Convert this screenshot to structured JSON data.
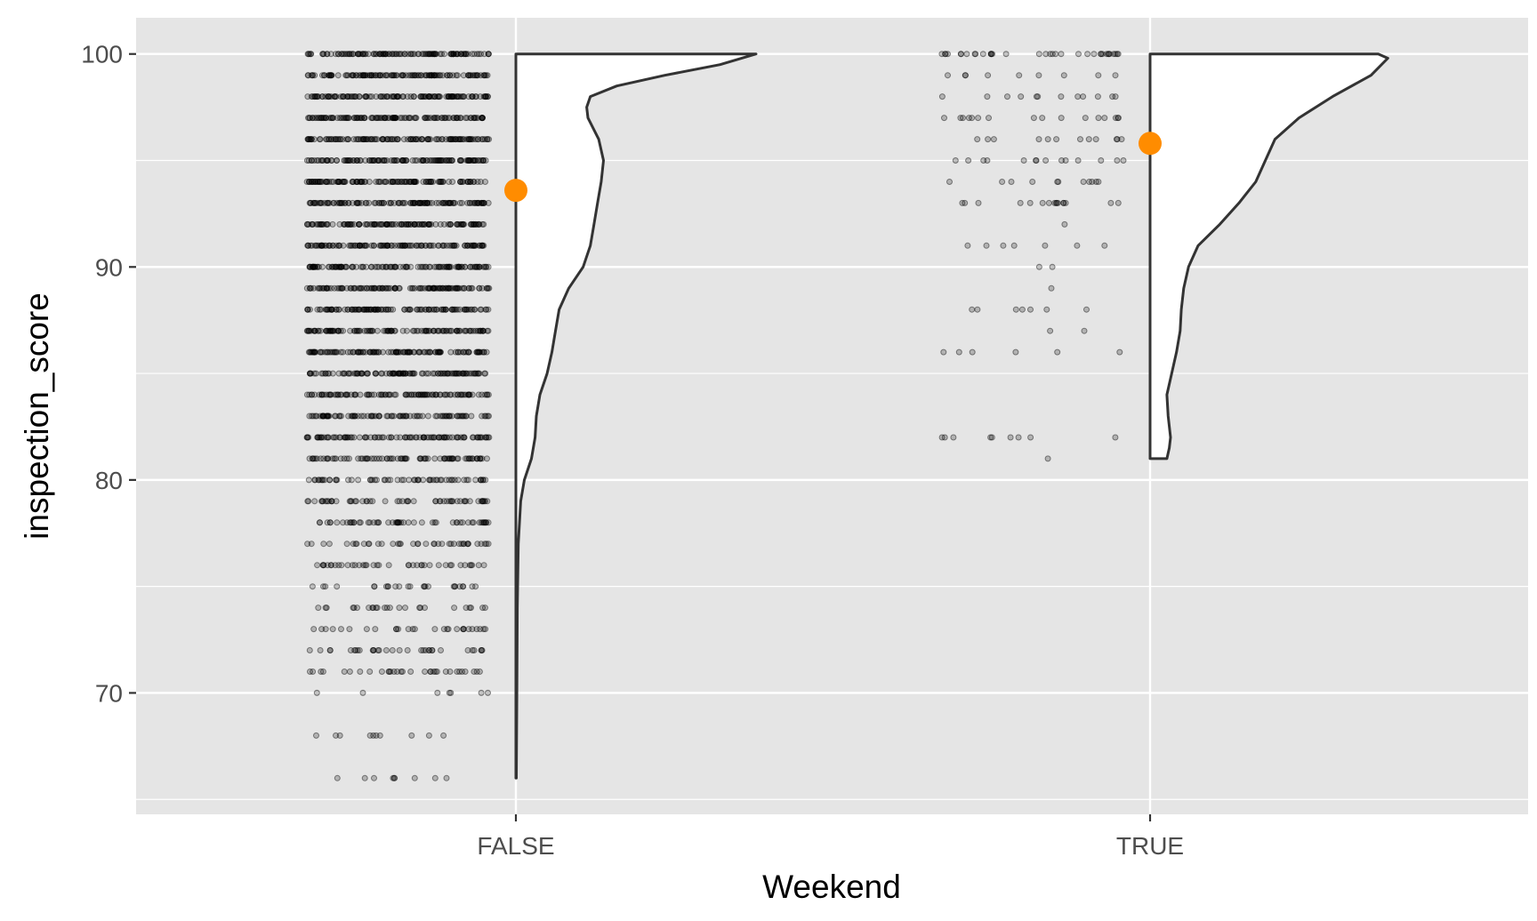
{
  "chart_data": {
    "type": "violin",
    "xlabel": "Weekend",
    "ylabel": "inspection_score",
    "categories": [
      "FALSE",
      "TRUE"
    ],
    "ylim": [
      64.3,
      101.7
    ],
    "y_ticks": [
      70,
      80,
      90,
      100
    ],
    "y_tick_labels": [
      "70",
      "80",
      "90",
      "100"
    ],
    "grid": true,
    "legend": "none",
    "panel_background": "#e5e5e5",
    "grid_color": "#ffffff",
    "point_color": "#000000",
    "mean_color": "#ff8c00",
    "means": [
      {
        "category": "FALSE",
        "y": 93.6
      },
      {
        "category": "TRUE",
        "y": 95.8
      }
    ],
    "density": [
      {
        "category": "FALSE",
        "y_range": [
          66,
          100
        ],
        "profile": [
          [
            66,
            0.002
          ],
          [
            70,
            0.004
          ],
          [
            74,
            0.006
          ],
          [
            77,
            0.01
          ],
          [
            79,
            0.02
          ],
          [
            80,
            0.035
          ],
          [
            81,
            0.065
          ],
          [
            82,
            0.08
          ],
          [
            83,
            0.085
          ],
          [
            84,
            0.1
          ],
          [
            85,
            0.13
          ],
          [
            86,
            0.15
          ],
          [
            87,
            0.165
          ],
          [
            88,
            0.18
          ],
          [
            89,
            0.22
          ],
          [
            90,
            0.28
          ],
          [
            91,
            0.31
          ],
          [
            92,
            0.325
          ],
          [
            93,
            0.34
          ],
          [
            94,
            0.355
          ],
          [
            95,
            0.365
          ],
          [
            96,
            0.345
          ],
          [
            97,
            0.3
          ],
          [
            97.5,
            0.295
          ],
          [
            98,
            0.31
          ],
          [
            98.5,
            0.42
          ],
          [
            99,
            0.62
          ],
          [
            99.5,
            0.85
          ],
          [
            100,
            1.0
          ]
        ]
      },
      {
        "category": "TRUE",
        "y_range": [
          81,
          100
        ],
        "profile": [
          [
            81,
            0.07
          ],
          [
            81.5,
            0.08
          ],
          [
            82,
            0.085
          ],
          [
            83,
            0.075
          ],
          [
            84,
            0.07
          ],
          [
            85,
            0.09
          ],
          [
            86,
            0.11
          ],
          [
            87,
            0.125
          ],
          [
            88,
            0.13
          ],
          [
            89,
            0.14
          ],
          [
            90,
            0.16
          ],
          [
            91,
            0.2
          ],
          [
            92,
            0.29
          ],
          [
            93,
            0.37
          ],
          [
            94,
            0.44
          ],
          [
            95,
            0.48
          ],
          [
            96,
            0.52
          ],
          [
            97,
            0.62
          ],
          [
            98,
            0.76
          ],
          [
            99,
            0.92
          ],
          [
            99.8,
            0.99
          ],
          [
            100,
            0.95
          ]
        ]
      }
    ],
    "jitter_points": [
      {
        "category": "FALSE",
        "scores": [
          {
            "y": 100,
            "n": 120
          },
          {
            "y": 99,
            "n": 120
          },
          {
            "y": 98,
            "n": 120
          },
          {
            "y": 97,
            "n": 120
          },
          {
            "y": 96,
            "n": 120
          },
          {
            "y": 95,
            "n": 120
          },
          {
            "y": 94,
            "n": 120
          },
          {
            "y": 93,
            "n": 120
          },
          {
            "y": 92,
            "n": 120
          },
          {
            "y": 91,
            "n": 120
          },
          {
            "y": 90,
            "n": 120
          },
          {
            "y": 89,
            "n": 120
          },
          {
            "y": 88,
            "n": 115
          },
          {
            "y": 87,
            "n": 115
          },
          {
            "y": 86,
            "n": 115
          },
          {
            "y": 85,
            "n": 110
          },
          {
            "y": 84,
            "n": 100
          },
          {
            "y": 83,
            "n": 90
          },
          {
            "y": 82,
            "n": 95
          },
          {
            "y": 81,
            "n": 80
          },
          {
            "y": 80,
            "n": 60
          },
          {
            "y": 79,
            "n": 55
          },
          {
            "y": 78,
            "n": 55
          },
          {
            "y": 77,
            "n": 40
          },
          {
            "y": 76,
            "n": 40
          },
          {
            "y": 75,
            "n": 25
          },
          {
            "y": 74,
            "n": 25
          },
          {
            "y": 73,
            "n": 28
          },
          {
            "y": 72,
            "n": 32
          },
          {
            "y": 71,
            "n": 32
          },
          {
            "y": 70,
            "n": 7
          },
          {
            "y": 68,
            "n": 10
          },
          {
            "y": 66,
            "n": 9
          }
        ]
      },
      {
        "category": "TRUE",
        "scores": [
          {
            "y": 100,
            "n": 35
          },
          {
            "y": 99,
            "n": 9
          },
          {
            "y": 98,
            "n": 12
          },
          {
            "y": 97,
            "n": 16
          },
          {
            "y": 96,
            "n": 12
          },
          {
            "y": 95,
            "n": 14
          },
          {
            "y": 94,
            "n": 11
          },
          {
            "y": 93,
            "n": 16
          },
          {
            "y": 92,
            "n": 1
          },
          {
            "y": 91,
            "n": 7
          },
          {
            "y": 90,
            "n": 2
          },
          {
            "y": 89,
            "n": 1
          },
          {
            "y": 88,
            "n": 7
          },
          {
            "y": 87,
            "n": 2
          },
          {
            "y": 86,
            "n": 6
          },
          {
            "y": 82,
            "n": 9
          },
          {
            "y": 81,
            "n": 1
          }
        ]
      }
    ]
  }
}
